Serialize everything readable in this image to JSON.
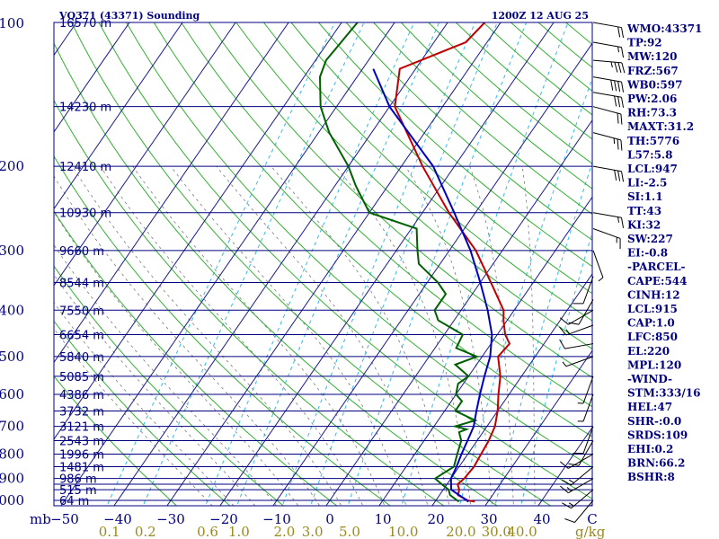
{
  "header": {
    "title_left": "VQ371 (43371) Sounding",
    "title_right": "1200Z 12 AUG 25"
  },
  "chart_data": {
    "type": "line",
    "xlabel": "",
    "ylabel": "",
    "pressure_unit_label": "mb",
    "mixing_ratio_unit_label": "g/kg",
    "pressure_levels": [
      100,
      200,
      300,
      400,
      500,
      600,
      700,
      800,
      900,
      1000
    ],
    "pressure_lines": [
      100,
      150,
      200,
      250,
      300,
      350,
      400,
      450,
      500,
      550,
      600,
      650,
      700,
      750,
      800,
      850,
      900,
      925,
      950,
      1000
    ],
    "temp_ticks": [
      -50,
      -40,
      -30,
      -20,
      -10,
      0,
      10,
      20,
      30,
      40
    ],
    "temp_ticks_right_label": "C",
    "mixing_ratio_ticks": [
      "0.1",
      "0.2",
      "0.6",
      "1.0",
      "2.0",
      "3.0",
      "5.0",
      "10.0",
      "20.0",
      "30.0",
      "40.0"
    ],
    "height_labels": [
      {
        "p": 100,
        "label": "16570 m"
      },
      {
        "p": 150,
        "label": "14230 m"
      },
      {
        "p": 200,
        "label": "12410 m"
      },
      {
        "p": 250,
        "label": "10930 m"
      },
      {
        "p": 300,
        "label": "9660 m"
      },
      {
        "p": 350,
        "label": "8544 m"
      },
      {
        "p": 400,
        "label": "7550 m"
      },
      {
        "p": 450,
        "label": "6654 m"
      },
      {
        "p": 500,
        "label": "5840 m"
      },
      {
        "p": 550,
        "label": "5085 m"
      },
      {
        "p": 600,
        "label": "4386 m"
      },
      {
        "p": 650,
        "label": "3732 m"
      },
      {
        "p": 700,
        "label": "3121 m"
      },
      {
        "p": 750,
        "label": "2543 m"
      },
      {
        "p": 800,
        "label": "1996 m"
      },
      {
        "p": 850,
        "label": "1481 m"
      },
      {
        "p": 900,
        "label": "986 m"
      },
      {
        "p": 950,
        "label": "515 m"
      },
      {
        "p": 1000,
        "label": "64 m"
      }
    ],
    "series": [
      {
        "role": "temperature",
        "color": "#c00000",
        "points": [
          [
            1006,
            27.5
          ],
          [
            1000,
            26
          ],
          [
            975,
            23.5
          ],
          [
            950,
            23
          ],
          [
            925,
            22
          ],
          [
            900,
            22.5
          ],
          [
            850,
            22.8
          ],
          [
            800,
            22.5
          ],
          [
            750,
            22.2
          ],
          [
            700,
            21.5
          ],
          [
            650,
            20
          ],
          [
            600,
            18
          ],
          [
            550,
            16
          ],
          [
            500,
            13
          ],
          [
            470,
            13.5
          ],
          [
            450,
            11.5
          ],
          [
            420,
            9.3
          ],
          [
            400,
            8
          ],
          [
            350,
            2
          ],
          [
            300,
            -5
          ],
          [
            250,
            -15
          ],
          [
            200,
            -26
          ],
          [
            150,
            -39
          ],
          [
            125,
            -43
          ],
          [
            110,
            -34
          ],
          [
            100,
            -33
          ]
        ]
      },
      {
        "role": "dewpoint",
        "color": "#006000",
        "points": [
          [
            1006,
            24.5
          ],
          [
            1000,
            24
          ],
          [
            975,
            22
          ],
          [
            950,
            21
          ],
          [
            925,
            19
          ],
          [
            900,
            17
          ],
          [
            850,
            19
          ],
          [
            800,
            18
          ],
          [
            750,
            17
          ],
          [
            720,
            15.5
          ],
          [
            710,
            16.5
          ],
          [
            700,
            14
          ],
          [
            680,
            17
          ],
          [
            650,
            12
          ],
          [
            620,
            12
          ],
          [
            600,
            10
          ],
          [
            570,
            9
          ],
          [
            550,
            10
          ],
          [
            520,
            6
          ],
          [
            500,
            9
          ],
          [
            480,
            4
          ],
          [
            450,
            3.5
          ],
          [
            420,
            -3
          ],
          [
            400,
            -5
          ],
          [
            370,
            -5
          ],
          [
            350,
            -8
          ],
          [
            320,
            -14
          ],
          [
            300,
            -16
          ],
          [
            270,
            -19
          ],
          [
            250,
            -30
          ],
          [
            220,
            -36
          ],
          [
            200,
            -40
          ],
          [
            170,
            -48
          ],
          [
            150,
            -53
          ],
          [
            130,
            -57
          ],
          [
            120,
            -58
          ],
          [
            100,
            -57
          ]
        ]
      },
      {
        "role": "parcel",
        "color": "#0000c0",
        "points": [
          [
            1006,
            26.3
          ],
          [
            990,
            25
          ],
          [
            950,
            21.5
          ],
          [
            900,
            20
          ],
          [
            850,
            19.5
          ],
          [
            800,
            18.8
          ],
          [
            750,
            18.2
          ],
          [
            700,
            17.5
          ],
          [
            650,
            16
          ],
          [
            600,
            14.5
          ],
          [
            550,
            13
          ],
          [
            500,
            11.5
          ],
          [
            450,
            9
          ],
          [
            400,
            5
          ],
          [
            350,
            0
          ],
          [
            300,
            -6
          ],
          [
            250,
            -14
          ],
          [
            200,
            -24
          ],
          [
            150,
            -40
          ],
          [
            125,
            -48
          ]
        ]
      }
    ],
    "wind_barbs": [
      {
        "p": 100,
        "dir": 100,
        "spd": 20
      },
      {
        "p": 110,
        "dir": 100,
        "spd": 15
      },
      {
        "p": 120,
        "dir": 95,
        "spd": 35
      },
      {
        "p": 130,
        "dir": 100,
        "spd": 40
      },
      {
        "p": 140,
        "dir": 100,
        "spd": 30
      },
      {
        "p": 150,
        "dir": 105,
        "spd": 20
      },
      {
        "p": 170,
        "dir": 105,
        "spd": 25
      },
      {
        "p": 200,
        "dir": 100,
        "spd": 30
      },
      {
        "p": 250,
        "dir": 100,
        "spd": 15
      },
      {
        "p": 270,
        "dir": 110,
        "spd": 15
      },
      {
        "p": 300,
        "dir": 160,
        "spd": 5
      },
      {
        "p": 340,
        "dir": 200,
        "spd": 10
      },
      {
        "p": 380,
        "dir": 210,
        "spd": 10
      },
      {
        "p": 400,
        "dir": 240,
        "spd": 10
      },
      {
        "p": 430,
        "dir": 250,
        "spd": 15
      },
      {
        "p": 470,
        "dir": 260,
        "spd": 10
      },
      {
        "p": 500,
        "dir": 250,
        "spd": 5
      },
      {
        "p": 550,
        "dir": 200,
        "spd": 5
      },
      {
        "p": 600,
        "dir": 200,
        "spd": 5
      },
      {
        "p": 700,
        "dir": 200,
        "spd": 10
      },
      {
        "p": 750,
        "dir": 210,
        "spd": 10
      },
      {
        "p": 800,
        "dir": 240,
        "spd": 10
      },
      {
        "p": 850,
        "dir": 230,
        "spd": 15
      },
      {
        "p": 900,
        "dir": 240,
        "spd": 15
      },
      {
        "p": 950,
        "dir": 230,
        "spd": 15
      },
      {
        "p": 1000,
        "dir": 220,
        "spd": 10
      }
    ]
  },
  "indices": [
    "WMO:43371",
    "TP:92",
    "MW:120",
    "FRZ:567",
    "WB0:597",
    "PW:2.06",
    "RH:73.3",
    "MAXT:31.2",
    "TH:5776",
    "L57:5.8",
    "LCL:947",
    "LI:-2.5",
    "SI:1.1",
    "TT:43",
    "KI:32",
    "SW:227",
    "EI:-0.8",
    "-PARCEL-",
    "CAPE:544",
    "CINH:12",
    "LCL:915",
    "CAP:1.0",
    "LFC:850",
    "EL:220",
    "MPL:120",
    "-WIND-",
    "STM:333/16",
    "HEL:47",
    "SHR-:0.0",
    "SRDS:109",
    "EHI:0.2",
    "BRN:66.2",
    "BSHR:8"
  ]
}
